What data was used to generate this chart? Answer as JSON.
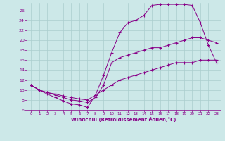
{
  "xlabel": "Windchill (Refroidissement éolien,°C)",
  "background_color": "#cce8e8",
  "grid_color": "#aacece",
  "line_color": "#880088",
  "xlim": [
    -0.5,
    23.5
  ],
  "ylim": [
    6,
    27.5
  ],
  "xticks": [
    0,
    1,
    2,
    3,
    4,
    5,
    6,
    7,
    8,
    9,
    10,
    11,
    12,
    13,
    14,
    15,
    16,
    17,
    18,
    19,
    20,
    21,
    22,
    23
  ],
  "yticks": [
    6,
    8,
    10,
    12,
    14,
    16,
    18,
    20,
    22,
    24,
    26
  ],
  "curve1_x": [
    0,
    1,
    2,
    3,
    4,
    5,
    6,
    7,
    8,
    9,
    10,
    11,
    12,
    13,
    14,
    15,
    16,
    17,
    18,
    19,
    20,
    21,
    22,
    23
  ],
  "curve1_y": [
    11,
    10,
    9.2,
    8.5,
    7.8,
    7.2,
    7.0,
    6.5,
    9.0,
    13.0,
    17.5,
    21.5,
    23.5,
    24.0,
    25.0,
    27.0,
    27.2,
    27.2,
    27.2,
    27.2,
    27.0,
    23.5,
    19.0,
    15.5
  ],
  "curve2_x": [
    0,
    1,
    2,
    3,
    4,
    5,
    6,
    7,
    8,
    9,
    10,
    11,
    12,
    13,
    14,
    15,
    16,
    17,
    18,
    19,
    20,
    21,
    22,
    23
  ],
  "curve2_y": [
    11,
    10,
    9.5,
    9.0,
    8.5,
    8.0,
    7.8,
    7.5,
    8.5,
    11.0,
    15.5,
    16.5,
    17.0,
    17.5,
    18.0,
    18.5,
    18.5,
    19.0,
    19.5,
    20.0,
    20.5,
    20.5,
    20.0,
    19.5
  ],
  "curve3_x": [
    0,
    1,
    2,
    3,
    4,
    5,
    6,
    7,
    8,
    9,
    10,
    11,
    12,
    13,
    14,
    15,
    16,
    17,
    18,
    19,
    20,
    21,
    22,
    23
  ],
  "curve3_y": [
    11,
    10,
    9.5,
    9.2,
    8.8,
    8.5,
    8.2,
    8.0,
    9.0,
    10.0,
    11.0,
    12.0,
    12.5,
    13.0,
    13.5,
    14.0,
    14.5,
    15.0,
    15.5,
    15.5,
    15.5,
    16.0,
    16.0,
    16.0
  ]
}
